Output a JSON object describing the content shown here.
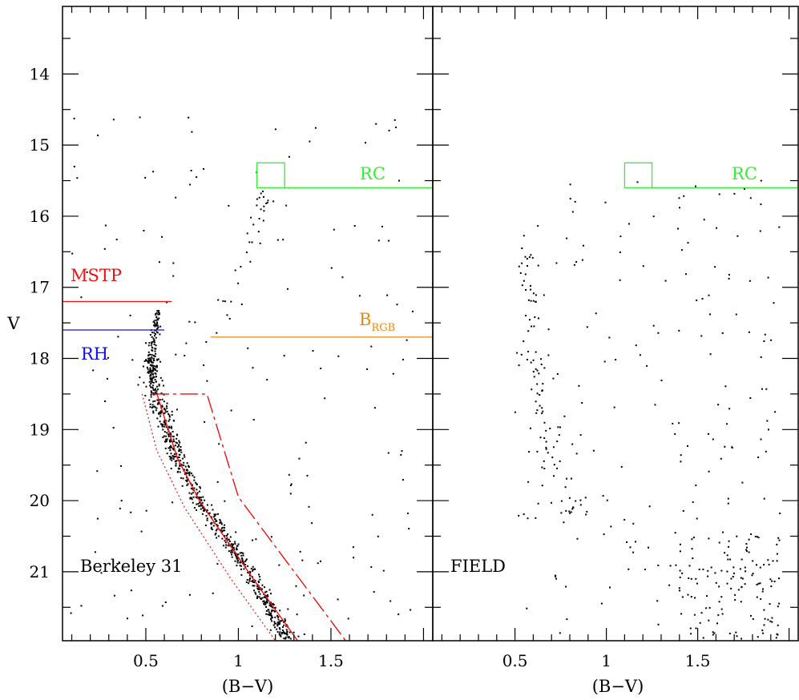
{
  "chart_data": [
    {
      "type": "scatter",
      "panel": "left",
      "title": "",
      "panel_label": "Berkeley 31",
      "xlabel": "(B−V)",
      "ylabel": "V",
      "xlim": [
        0.05,
        2.05
      ],
      "ylim": [
        21.97,
        13.05
      ],
      "y_inverted": true,
      "xticks": [
        {
          "value": 0.5,
          "label": "0.5"
        },
        {
          "value": 1.0,
          "label": "1"
        },
        {
          "value": 1.5,
          "label": "1.5"
        }
      ],
      "yticks": [
        {
          "value": 14,
          "label": "14"
        },
        {
          "value": 15,
          "label": "15"
        },
        {
          "value": 16,
          "label": "16"
        },
        {
          "value": 17,
          "label": "17"
        },
        {
          "value": 18,
          "label": "18"
        },
        {
          "value": 19,
          "label": "19"
        },
        {
          "value": 20,
          "label": "20"
        },
        {
          "value": 21,
          "label": "21"
        }
      ],
      "grid": false,
      "annotations": {
        "rc": {
          "label": "RC",
          "color": "#33ee33",
          "box_x": [
            1.1,
            1.25
          ],
          "box_y": [
            15.25,
            15.6
          ],
          "line_y": 15.6,
          "label_at": [
            1.72,
            15.5
          ]
        },
        "mstp": {
          "label": "MSTP",
          "color": "#ee1111",
          "line_y": 17.2,
          "line_x": [
            0.05,
            0.64
          ],
          "label_at": [
            0.17,
            16.97
          ]
        },
        "rh": {
          "label": "RH",
          "color": "#1111dd",
          "line_y": 17.6,
          "line_x": [
            0.05,
            0.6
          ],
          "label_at": [
            0.17,
            18.05
          ]
        },
        "brgb": {
          "label": "B",
          "sublabel": "RGB",
          "color": "#ee8811",
          "line_y": 17.7,
          "line_x": [
            0.85,
            2.05
          ],
          "label_at": [
            1.61,
            17.62
          ]
        }
      },
      "sequence_box": {
        "color": "#ee1111",
        "ridge_solid": [
          [
            0.56,
            18.5
          ],
          [
            0.67,
            19.4
          ],
          [
            0.79,
            20.0
          ],
          [
            1.08,
            21.1
          ],
          [
            1.32,
            21.97
          ]
        ],
        "blue_dotted": [
          [
            0.48,
            18.5
          ],
          [
            0.56,
            19.3
          ],
          [
            0.71,
            20.1
          ],
          [
            0.96,
            21.1
          ],
          [
            1.2,
            21.97
          ]
        ],
        "red_dashed": [
          [
            0.53,
            18.5
          ],
          [
            0.83,
            18.5
          ],
          [
            1.0,
            19.95
          ],
          [
            1.58,
            21.97
          ]
        ]
      },
      "point_groups": [
        {
          "name": "main sequence",
          "count": 700,
          "ridge": [
            [
              0.53,
              18.0
            ],
            [
              0.55,
              18.5
            ],
            [
              0.67,
              19.4
            ],
            [
              0.79,
              20.0
            ],
            [
              1.08,
              21.1
            ],
            [
              1.27,
              21.97
            ]
          ],
          "spread": 0.05
        },
        {
          "name": "turnoff",
          "count": 110,
          "ridge": [
            [
              0.57,
              17.3
            ],
            [
              0.54,
              17.8
            ],
            [
              0.53,
              18.3
            ]
          ],
          "spread": 0.025
        },
        {
          "name": "subgiant and giant branch",
          "count": 30,
          "ridge": [
            [
              0.9,
              17.5
            ],
            [
              1.02,
              16.7
            ],
            [
              1.1,
              16.0
            ],
            [
              1.2,
              15.5
            ]
          ],
          "spread": 0.05
        },
        {
          "name": "field scatter",
          "count": 170,
          "area": [
            [
              0.08,
              1.95
            ],
            [
              14.6,
              21.97
            ]
          ]
        }
      ]
    },
    {
      "type": "scatter",
      "panel": "right",
      "title": "",
      "panel_label": "FIELD",
      "xlabel": "(B−V)",
      "ylabel": "",
      "xlim": [
        0.05,
        2.05
      ],
      "ylim": [
        21.97,
        13.05
      ],
      "y_inverted": true,
      "xticks": [
        {
          "value": 0.5,
          "label": "0.5"
        },
        {
          "value": 1.0,
          "label": "1"
        },
        {
          "value": 1.5,
          "label": "1.5"
        }
      ],
      "grid": false,
      "annotations": {
        "rc": {
          "label": "RC",
          "color": "#33ee33",
          "box_x": [
            1.1,
            1.25
          ],
          "box_y": [
            15.25,
            15.6
          ],
          "line_y": 15.6,
          "label_at": [
            1.72,
            15.5
          ]
        }
      },
      "point_groups": [
        {
          "name": "field scatter",
          "count": 190,
          "area": [
            [
              0.5,
              1.95
            ],
            [
              15.5,
              21.97
            ]
          ]
        },
        {
          "name": "field blue plume",
          "count": 100,
          "ridge": [
            [
              0.55,
              16.5
            ],
            [
              0.62,
              18.0
            ],
            [
              0.72,
              19.5
            ],
            [
              0.8,
              20.2
            ]
          ],
          "spread": 0.1
        },
        {
          "name": "field red clump",
          "count": 120,
          "area": [
            [
              1.4,
              1.95
            ],
            [
              20.5,
              21.97
            ]
          ]
        }
      ]
    }
  ]
}
